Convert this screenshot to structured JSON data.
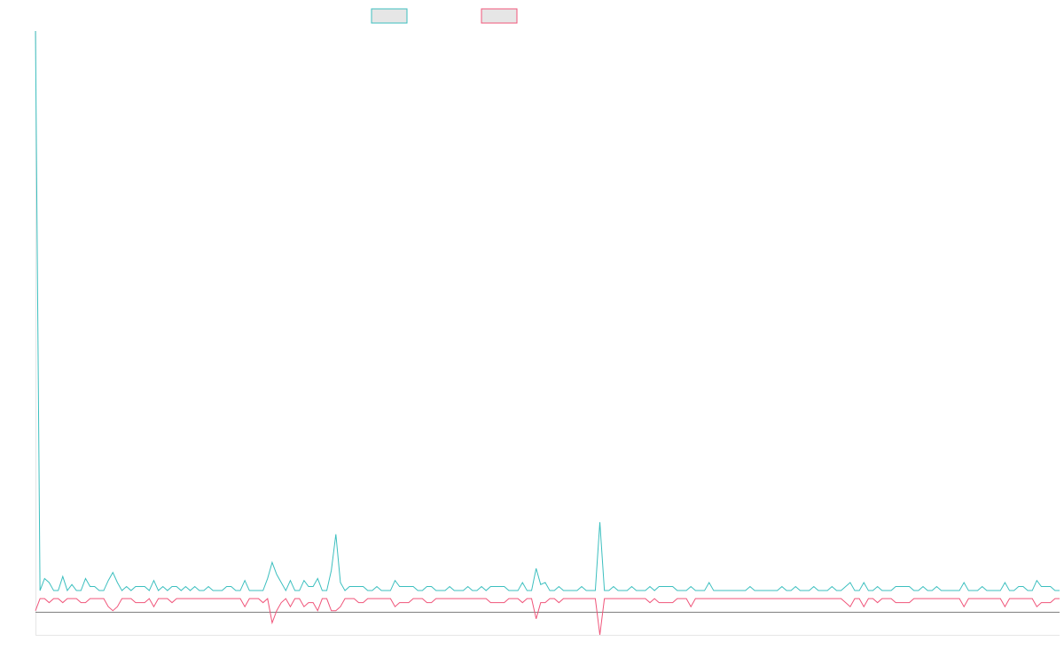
{
  "chart_data": {
    "type": "line",
    "series": [
      {
        "color": "#3cbfbf",
        "fill": "#e6e6e6",
        "values": [
          280,
          2,
          8,
          6,
          2,
          2,
          9,
          2,
          5,
          2,
          2,
          8,
          4,
          4,
          2,
          2,
          7,
          11,
          6,
          2,
          4,
          2,
          4,
          4,
          4,
          2,
          7,
          2,
          4,
          2,
          4,
          4,
          2,
          4,
          2,
          4,
          2,
          2,
          4,
          2,
          2,
          2,
          4,
          4,
          2,
          2,
          7,
          2,
          2,
          2,
          2,
          8,
          16,
          10,
          6,
          2,
          7,
          2,
          2,
          7,
          4,
          4,
          8,
          2,
          2,
          12,
          30,
          6,
          2,
          4,
          4,
          4,
          4,
          2,
          2,
          4,
          2,
          2,
          2,
          7,
          4,
          4,
          4,
          4,
          2,
          2,
          4,
          4,
          2,
          2,
          2,
          4,
          2,
          2,
          2,
          4,
          2,
          2,
          4,
          2,
          4,
          4,
          4,
          4,
          2,
          2,
          2,
          6,
          2,
          2,
          13,
          5,
          6,
          2,
          2,
          4,
          2,
          2,
          2,
          2,
          4,
          2,
          2,
          2,
          36,
          2,
          2,
          4,
          2,
          2,
          2,
          4,
          2,
          2,
          2,
          4,
          2,
          4,
          4,
          4,
          4,
          2,
          2,
          2,
          4,
          2,
          2,
          2,
          6,
          2,
          2,
          2,
          2,
          2,
          2,
          2,
          2,
          4,
          2,
          2,
          2,
          2,
          2,
          2,
          4,
          2,
          2,
          4,
          2,
          2,
          2,
          4,
          2,
          2,
          2,
          4,
          2,
          2,
          4,
          6,
          2,
          2,
          6,
          2,
          2,
          4,
          2,
          2,
          2,
          4,
          4,
          4,
          4,
          2,
          2,
          4,
          2,
          2,
          4,
          2,
          2,
          2,
          2,
          2,
          6,
          2,
          2,
          2,
          4,
          2,
          2,
          2,
          2,
          6,
          2,
          2,
          4,
          4,
          2,
          2,
          7,
          4,
          4,
          4,
          2,
          2
        ]
      },
      {
        "color": "#f0557a",
        "fill": "#e6e6e6",
        "values": [
          -8,
          -2,
          -2,
          -4,
          -2,
          -2,
          -4,
          -2,
          -2,
          -2,
          -4,
          -4,
          -2,
          -2,
          -2,
          -2,
          -6,
          -8,
          -6,
          -2,
          -2,
          -2,
          -4,
          -4,
          -4,
          -2,
          -6,
          -2,
          -2,
          -2,
          -4,
          -2,
          -2,
          -2,
          -2,
          -2,
          -2,
          -2,
          -2,
          -2,
          -2,
          -2,
          -2,
          -2,
          -2,
          -2,
          -6,
          -2,
          -2,
          -2,
          -4,
          -2,
          -14,
          -8,
          -4,
          -2,
          -6,
          -2,
          -2,
          -6,
          -4,
          -4,
          -8,
          -2,
          -2,
          -8,
          -8,
          -6,
          -2,
          -2,
          -2,
          -4,
          -4,
          -2,
          -2,
          -2,
          -2,
          -2,
          -2,
          -6,
          -4,
          -4,
          -4,
          -2,
          -2,
          -2,
          -4,
          -4,
          -2,
          -2,
          -2,
          -2,
          -2,
          -2,
          -2,
          -2,
          -2,
          -2,
          -2,
          -2,
          -4,
          -4,
          -4,
          -4,
          -2,
          -2,
          -2,
          -4,
          -2,
          -2,
          -12,
          -4,
          -4,
          -2,
          -2,
          -4,
          -2,
          -2,
          -2,
          -2,
          -2,
          -2,
          -2,
          -2,
          -20,
          -2,
          -2,
          -2,
          -2,
          -2,
          -2,
          -2,
          -2,
          -2,
          -2,
          -4,
          -2,
          -4,
          -4,
          -4,
          -4,
          -2,
          -2,
          -2,
          -6,
          -2,
          -2,
          -2,
          -2,
          -2,
          -2,
          -2,
          -2,
          -2,
          -2,
          -2,
          -2,
          -2,
          -2,
          -2,
          -2,
          -2,
          -2,
          -2,
          -2,
          -2,
          -2,
          -2,
          -2,
          -2,
          -2,
          -2,
          -2,
          -2,
          -2,
          -2,
          -2,
          -2,
          -4,
          -6,
          -2,
          -2,
          -6,
          -2,
          -2,
          -4,
          -2,
          -2,
          -2,
          -4,
          -4,
          -4,
          -4,
          -2,
          -2,
          -2,
          -2,
          -2,
          -2,
          -2,
          -2,
          -2,
          -2,
          -2,
          -6,
          -2,
          -2,
          -2,
          -2,
          -2,
          -2,
          -2,
          -2,
          -6,
          -2,
          -2,
          -2,
          -2,
          -2,
          -2,
          -6,
          -4,
          -4,
          -4,
          -2,
          -2
        ]
      }
    ],
    "legend_position": "top-center",
    "ylim": [
      -20,
      280
    ],
    "grid": false
  }
}
